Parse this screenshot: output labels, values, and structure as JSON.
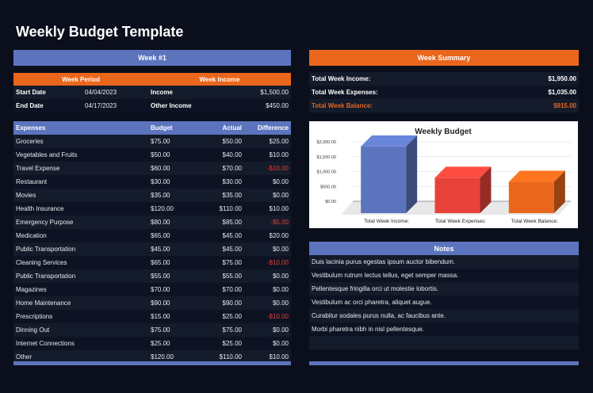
{
  "title": "Weekly Budget Template",
  "week": {
    "header": "Week #1",
    "period_header": "Week Period",
    "income_header": "Week Income",
    "rows": [
      {
        "label": "Start Date",
        "date": "04/04/2023",
        "income_label": "Income",
        "income_value": "$1,500.00"
      },
      {
        "label": "End Date",
        "date": "04/17/2023",
        "income_label": "Other Income",
        "income_value": "$450.00"
      }
    ]
  },
  "expenses": {
    "columns": [
      "Expenses",
      "Budget",
      "Actual",
      "Difference"
    ],
    "rows": [
      [
        "Groceries",
        "$75.00",
        "$50.00",
        "$25.00"
      ],
      [
        "Vegetables and Fruits",
        "$50.00",
        "$40.00",
        "$10.00"
      ],
      [
        "Travel Expense",
        "$60.00",
        "$70.00",
        "-$10.00"
      ],
      [
        "Restaurant",
        "$30.00",
        "$30.00",
        "$0.00"
      ],
      [
        "Movies",
        "$35.00",
        "$35.00",
        "$0.00"
      ],
      [
        "Health Insurance",
        "$120.00",
        "$110.00",
        "$10.00"
      ],
      [
        "Emergency Purpose",
        "$80.00",
        "$85.00",
        "-$5.00"
      ],
      [
        "Medication",
        "$65.00",
        "$45.00",
        "$20.00"
      ],
      [
        "Public Transportation",
        "$45.00",
        "$45.00",
        "$0.00"
      ],
      [
        "Cleaning Services",
        "$65.00",
        "$75.00",
        "-$10.00"
      ],
      [
        "Public Transportation",
        "$55.00",
        "$55.00",
        "$0.00"
      ],
      [
        "Magazines",
        "$70.00",
        "$70.00",
        "$0.00"
      ],
      [
        "Home Maintenance",
        "$90.00",
        "$90.00",
        "$0.00"
      ],
      [
        "Prescriptions",
        "$15.00",
        "$25.00",
        "-$10.00"
      ],
      [
        "Dinning Out",
        "$75.00",
        "$75.00",
        "$0.00"
      ],
      [
        "Internet Connections",
        "$25.00",
        "$25.00",
        "$0.00"
      ],
      [
        "Other",
        "$120.00",
        "$110.00",
        "$10.00"
      ]
    ]
  },
  "summary": {
    "header": "Week Summary",
    "rows": [
      {
        "label": "Total Week Income:",
        "value": "$1,950.00"
      },
      {
        "label": "Total Week Expenses:",
        "value": "$1,035.00"
      },
      {
        "label": "Total Week Balance:",
        "value": "$915.00",
        "highlight": true
      }
    ]
  },
  "chart_data": {
    "type": "bar",
    "title": "Weekly Budget",
    "categories": [
      "Total Week Income:",
      "Total Week Expenses:",
      "Total Week Balance:"
    ],
    "values": [
      1950,
      1035,
      915
    ],
    "colors": [
      "#5b74bd",
      "#e8433a",
      "#ea661c"
    ],
    "yticks": [
      "$0.00",
      "$500.00",
      "$1,000.00",
      "$1,500.00",
      "$2,000.00"
    ],
    "ylim": [
      0,
      2000
    ],
    "grid": true,
    "style": "3d"
  },
  "notes": {
    "header": "Notes",
    "items": [
      "Duis lacinia purus egestas ipsum auctor bibendum.",
      "Vestibulum rutrum lectus tellus, eget semper massa.",
      "Pellentesque fringilla orci ut molestie lobortis.",
      "Vestibulum ac orci pharetra, aliquet augue.",
      "Curabitur sodales purus nulla, ac faucibus ante.",
      "Morbi pharetra nibh in nisl pellentesque.",
      ""
    ]
  },
  "colors": {
    "accent_blue": "#5b74bd",
    "accent_orange": "#ea661c",
    "negative": "#e0413a",
    "background": "#0b0f1c"
  }
}
